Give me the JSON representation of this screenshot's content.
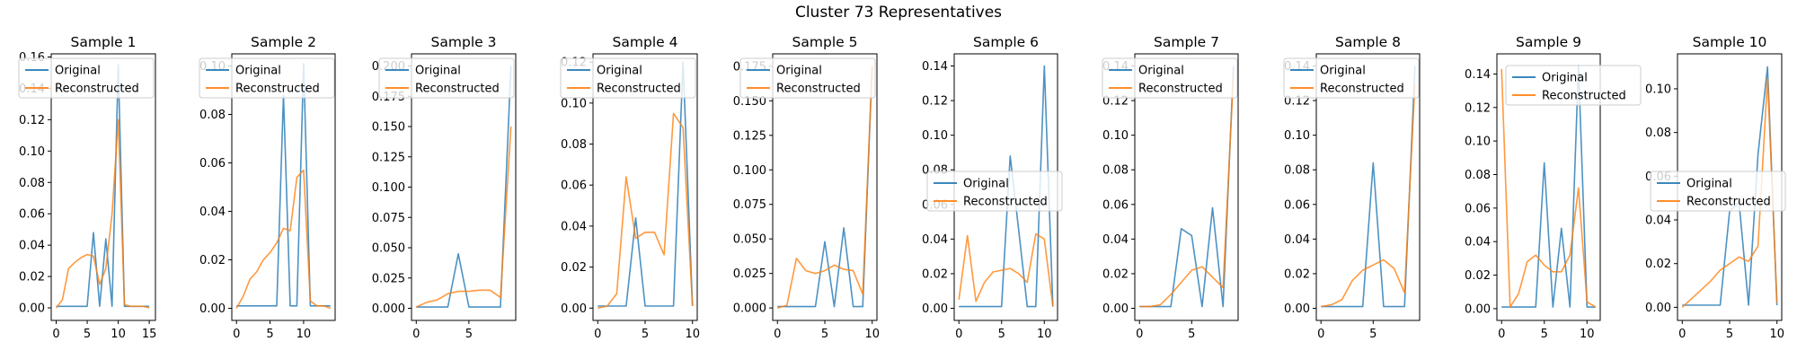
{
  "figure": {
    "title": "Cluster 73 Representatives",
    "colors": {
      "original": "#1f77b4",
      "reconstructed": "#ff7f0e"
    }
  },
  "chart_data": [
    {
      "type": "line",
      "title": "Sample 1",
      "grid": false,
      "legend_placement": "upper-left",
      "xlim": [
        -0.8,
        16.0
      ],
      "ylim": [
        -0.008,
        0.162
      ],
      "xticks": [
        0,
        5,
        10,
        15
      ],
      "yticks": [
        0.0,
        0.02,
        0.04,
        0.06,
        0.08,
        0.1,
        0.12,
        0.14,
        0.16
      ],
      "x": [
        0,
        1,
        2,
        3,
        4,
        5,
        6,
        7,
        8,
        9,
        10,
        11,
        12,
        13,
        14,
        15
      ],
      "series": [
        {
          "name": "Original",
          "values": [
            0.001,
            0.001,
            0.001,
            0.001,
            0.001,
            0.001,
            0.048,
            0.001,
            0.044,
            0.001,
            0.155,
            0.001,
            0.001,
            0.001,
            0.001,
            0.001
          ]
        },
        {
          "name": "Reconstructed",
          "values": [
            0.0,
            0.005,
            0.025,
            0.029,
            0.032,
            0.034,
            0.033,
            0.015,
            0.025,
            0.06,
            0.12,
            0.002,
            0.001,
            0.001,
            0.001,
            0.0
          ]
        }
      ]
    },
    {
      "type": "line",
      "title": "Sample 2",
      "grid": false,
      "legend_placement": "upper-left",
      "xlim": [
        -0.7,
        14.7
      ],
      "ylim": [
        -0.005,
        0.105
      ],
      "xticks": [
        0,
        5,
        10
      ],
      "yticks": [
        0.0,
        0.02,
        0.04,
        0.06,
        0.08,
        0.1
      ],
      "x": [
        0,
        1,
        2,
        3,
        4,
        5,
        6,
        7,
        8,
        9,
        10,
        11,
        12,
        13,
        14
      ],
      "series": [
        {
          "name": "Original",
          "values": [
            0.001,
            0.001,
            0.001,
            0.001,
            0.001,
            0.001,
            0.001,
            0.088,
            0.001,
            0.001,
            0.101,
            0.001,
            0.001,
            0.001,
            0.001
          ]
        },
        {
          "name": "Reconstructed",
          "values": [
            0.0,
            0.005,
            0.012,
            0.015,
            0.02,
            0.023,
            0.027,
            0.033,
            0.032,
            0.054,
            0.057,
            0.003,
            0.001,
            0.001,
            0.0
          ]
        }
      ]
    },
    {
      "type": "line",
      "title": "Sample 3",
      "grid": false,
      "legend_placement": "upper-left",
      "xlim": [
        -0.45,
        9.45
      ],
      "ylim": [
        -0.01,
        0.21
      ],
      "xticks": [
        0,
        5
      ],
      "yticks": [
        0.0,
        0.025,
        0.05,
        0.075,
        0.1,
        0.125,
        0.15,
        0.175,
        0.2
      ],
      "x": [
        0,
        1,
        2,
        3,
        4,
        5,
        6,
        7,
        8,
        9
      ],
      "series": [
        {
          "name": "Original",
          "values": [
            0.001,
            0.001,
            0.001,
            0.001,
            0.045,
            0.001,
            0.001,
            0.001,
            0.001,
            0.2
          ]
        },
        {
          "name": "Reconstructed",
          "values": [
            0.001,
            0.005,
            0.007,
            0.012,
            0.014,
            0.014,
            0.015,
            0.015,
            0.009,
            0.15
          ]
        }
      ]
    },
    {
      "type": "line",
      "title": "Sample 4",
      "grid": false,
      "legend_placement": "upper-left",
      "xlim": [
        -0.5,
        10.5
      ],
      "ylim": [
        -0.006,
        0.124
      ],
      "xticks": [
        0,
        5,
        10
      ],
      "yticks": [
        0.0,
        0.02,
        0.04,
        0.06,
        0.08,
        0.1,
        0.12
      ],
      "x": [
        0,
        1,
        2,
        3,
        4,
        5,
        6,
        7,
        8,
        9,
        10
      ],
      "series": [
        {
          "name": "Original",
          "values": [
            0.001,
            0.001,
            0.001,
            0.001,
            0.044,
            0.001,
            0.001,
            0.001,
            0.001,
            0.12,
            0.001
          ]
        },
        {
          "name": "Reconstructed",
          "values": [
            0.0,
            0.001,
            0.007,
            0.064,
            0.034,
            0.037,
            0.037,
            0.026,
            0.095,
            0.088,
            0.001
          ]
        }
      ]
    },
    {
      "type": "line",
      "title": "Sample 5",
      "grid": false,
      "legend_placement": "upper-left",
      "xlim": [
        -0.5,
        10.5
      ],
      "ylim": [
        -0.009,
        0.184
      ],
      "xticks": [
        0,
        5,
        10
      ],
      "yticks": [
        0.0,
        0.025,
        0.05,
        0.075,
        0.1,
        0.125,
        0.15,
        0.175
      ],
      "x": [
        0,
        1,
        2,
        3,
        4,
        5,
        6,
        7,
        8,
        9,
        10
      ],
      "series": [
        {
          "name": "Original",
          "values": [
            0.001,
            0.001,
            0.001,
            0.001,
            0.001,
            0.048,
            0.001,
            0.058,
            0.001,
            0.001,
            0.175
          ]
        },
        {
          "name": "Reconstructed",
          "values": [
            0.0,
            0.002,
            0.036,
            0.027,
            0.025,
            0.027,
            0.031,
            0.028,
            0.027,
            0.01,
            0.175
          ]
        }
      ]
    },
    {
      "type": "line",
      "title": "Sample 6",
      "grid": false,
      "legend_placement": "center-left",
      "xlim": [
        -0.55,
        11.55
      ],
      "ylim": [
        -0.007,
        0.147
      ],
      "xticks": [
        0,
        5,
        10
      ],
      "yticks": [
        0.0,
        0.02,
        0.04,
        0.06,
        0.08,
        0.1,
        0.12,
        0.14
      ],
      "x": [
        0,
        1,
        2,
        3,
        4,
        5,
        6,
        7,
        8,
        9,
        10,
        11
      ],
      "series": [
        {
          "name": "Original",
          "values": [
            0.001,
            0.001,
            0.001,
            0.001,
            0.001,
            0.001,
            0.088,
            0.045,
            0.001,
            0.001,
            0.14,
            0.001
          ]
        },
        {
          "name": "Reconstructed",
          "values": [
            0.005,
            0.042,
            0.004,
            0.015,
            0.021,
            0.022,
            0.023,
            0.02,
            0.015,
            0.043,
            0.04,
            0.001
          ]
        }
      ]
    },
    {
      "type": "line",
      "title": "Sample 7",
      "grid": false,
      "legend_placement": "upper-left",
      "xlim": [
        -0.45,
        9.45
      ],
      "ylim": [
        -0.007,
        0.147
      ],
      "xticks": [
        0,
        5
      ],
      "yticks": [
        0.0,
        0.02,
        0.04,
        0.06,
        0.08,
        0.1,
        0.12,
        0.14
      ],
      "x": [
        0,
        1,
        2,
        3,
        4,
        5,
        6,
        7,
        8,
        9
      ],
      "series": [
        {
          "name": "Original",
          "values": [
            0.001,
            0.001,
            0.001,
            0.001,
            0.046,
            0.042,
            0.001,
            0.058,
            0.001,
            0.14
          ]
        },
        {
          "name": "Reconstructed",
          "values": [
            0.001,
            0.001,
            0.002,
            0.008,
            0.015,
            0.022,
            0.024,
            0.018,
            0.012,
            0.135
          ]
        }
      ]
    },
    {
      "type": "line",
      "title": "Sample 8",
      "grid": false,
      "legend_placement": "upper-left",
      "xlim": [
        -0.45,
        9.45
      ],
      "ylim": [
        -0.007,
        0.147
      ],
      "xticks": [
        0,
        5
      ],
      "yticks": [
        0.0,
        0.02,
        0.04,
        0.06,
        0.08,
        0.1,
        0.12,
        0.14
      ],
      "x": [
        0,
        1,
        2,
        3,
        4,
        5,
        6,
        7,
        8,
        9
      ],
      "series": [
        {
          "name": "Original",
          "values": [
            0.001,
            0.001,
            0.001,
            0.001,
            0.001,
            0.084,
            0.001,
            0.001,
            0.001,
            0.14
          ]
        },
        {
          "name": "Reconstructed",
          "values": [
            0.001,
            0.002,
            0.005,
            0.016,
            0.022,
            0.025,
            0.028,
            0.023,
            0.009,
            0.13
          ]
        }
      ]
    },
    {
      "type": "line",
      "title": "Sample 9",
      "grid": false,
      "legend_placement": "upper-right",
      "xlim": [
        -0.55,
        11.55
      ],
      "ylim": [
        -0.007,
        0.152
      ],
      "xticks": [
        0,
        5,
        10
      ],
      "yticks": [
        0.0,
        0.02,
        0.04,
        0.06,
        0.08,
        0.1,
        0.12,
        0.14
      ],
      "x": [
        0,
        1,
        2,
        3,
        4,
        5,
        6,
        7,
        8,
        9,
        10,
        11
      ],
      "series": [
        {
          "name": "Original",
          "values": [
            0.001,
            0.001,
            0.001,
            0.001,
            0.001,
            0.087,
            0.001,
            0.048,
            0.001,
            0.145,
            0.001,
            0.001
          ]
        },
        {
          "name": "Reconstructed",
          "values": [
            0.143,
            0.001,
            0.009,
            0.028,
            0.032,
            0.026,
            0.022,
            0.022,
            0.032,
            0.072,
            0.004,
            0.001
          ]
        }
      ]
    },
    {
      "type": "line",
      "title": "Sample 10",
      "grid": false,
      "legend_placement": "center-left",
      "xlim": [
        -0.5,
        10.5
      ],
      "ylim": [
        -0.006,
        0.116
      ],
      "xticks": [
        0,
        5,
        10
      ],
      "yticks": [
        0.0,
        0.02,
        0.04,
        0.06,
        0.08,
        0.1
      ],
      "x": [
        0,
        1,
        2,
        3,
        4,
        5,
        6,
        7,
        8,
        9,
        10
      ],
      "series": [
        {
          "name": "Original",
          "values": [
            0.001,
            0.001,
            0.001,
            0.001,
            0.001,
            0.044,
            0.048,
            0.001,
            0.07,
            0.11,
            0.001
          ]
        },
        {
          "name": "Reconstructed",
          "values": [
            0.0,
            0.004,
            0.008,
            0.012,
            0.017,
            0.02,
            0.023,
            0.021,
            0.028,
            0.105,
            0.002
          ]
        }
      ]
    }
  ]
}
